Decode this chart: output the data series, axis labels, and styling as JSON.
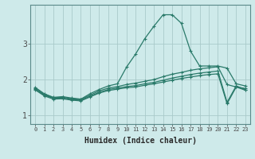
{
  "xlabel": "Humidex (Indice chaleur)",
  "ylabel": "",
  "bg_color": "#ceeaea",
  "grid_color": "#aacaca",
  "line_color": "#2a7a6a",
  "xlim": [
    -0.5,
    23.5
  ],
  "ylim": [
    0.75,
    4.1
  ],
  "yticks": [
    1,
    2,
    3
  ],
  "xtick_labels": [
    "0",
    "1",
    "2",
    "3",
    "4",
    "5",
    "6",
    "7",
    "8",
    "9",
    "10",
    "11",
    "12",
    "13",
    "14",
    "15",
    "16",
    "17",
    "18",
    "19",
    "20",
    "21",
    "22",
    "23"
  ],
  "line1_x": [
    0,
    1,
    2,
    3,
    4,
    5,
    6,
    7,
    8,
    9,
    10,
    11,
    12,
    13,
    14,
    15,
    16,
    17,
    18,
    19,
    20,
    21,
    22,
    23
  ],
  "line1_y": [
    1.78,
    1.6,
    1.5,
    1.52,
    1.48,
    1.45,
    1.6,
    1.72,
    1.82,
    1.88,
    2.35,
    2.72,
    3.15,
    3.5,
    3.82,
    3.82,
    3.58,
    2.8,
    2.38,
    2.38,
    2.38,
    2.32,
    1.88,
    1.82
  ],
  "line2_x": [
    0,
    1,
    2,
    3,
    4,
    5,
    6,
    7,
    8,
    9,
    10,
    11,
    12,
    13,
    14,
    15,
    16,
    17,
    18,
    19,
    20,
    21,
    22,
    23
  ],
  "line2_y": [
    1.76,
    1.58,
    1.49,
    1.5,
    1.46,
    1.44,
    1.56,
    1.68,
    1.76,
    1.8,
    1.86,
    1.9,
    1.95,
    2.0,
    2.08,
    2.15,
    2.2,
    2.26,
    2.3,
    2.33,
    2.36,
    1.86,
    1.79,
    1.75
  ],
  "line3_x": [
    0,
    1,
    2,
    3,
    4,
    5,
    6,
    7,
    8,
    9,
    10,
    11,
    12,
    13,
    14,
    15,
    16,
    17,
    18,
    19,
    20,
    21,
    22,
    23
  ],
  "line3_y": [
    1.73,
    1.56,
    1.47,
    1.48,
    1.44,
    1.42,
    1.53,
    1.64,
    1.72,
    1.76,
    1.8,
    1.83,
    1.88,
    1.92,
    1.98,
    2.04,
    2.09,
    2.14,
    2.18,
    2.21,
    2.24,
    1.36,
    1.82,
    1.72
  ],
  "line4_x": [
    0,
    1,
    2,
    3,
    4,
    5,
    6,
    7,
    8,
    9,
    10,
    11,
    12,
    13,
    14,
    15,
    16,
    17,
    18,
    19,
    20,
    21,
    22,
    23
  ],
  "line4_y": [
    1.71,
    1.54,
    1.45,
    1.46,
    1.42,
    1.4,
    1.51,
    1.62,
    1.69,
    1.73,
    1.77,
    1.79,
    1.84,
    1.88,
    1.93,
    1.98,
    2.03,
    2.07,
    2.11,
    2.14,
    2.16,
    1.32,
    1.79,
    1.7
  ]
}
